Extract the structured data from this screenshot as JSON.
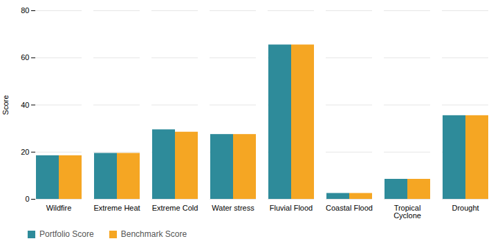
{
  "chart_data": {
    "type": "bar",
    "categories": [
      "Wildfire",
      "Extreme Heat",
      "Extreme Cold",
      "Water stress",
      "Fluvial Flood",
      "Coastal Flood",
      "Tropical\nCyclone",
      "Drought"
    ],
    "series": [
      {
        "name": "Portfolio Score",
        "color": "#2e8b9a",
        "values": [
          18.5,
          19.5,
          29.5,
          27.5,
          65.5,
          2.5,
          8.5,
          35.5
        ]
      },
      {
        "name": "Benchmark Score",
        "color": "#f5a623",
        "values": [
          18.5,
          19.5,
          28.5,
          27.5,
          65.5,
          2.5,
          8.5,
          35.5
        ]
      }
    ],
    "ylabel": "Score",
    "ylim": [
      0,
      80
    ],
    "yticks": [
      0,
      20,
      40,
      60,
      80
    ],
    "grid": true,
    "legend": "bottom"
  }
}
